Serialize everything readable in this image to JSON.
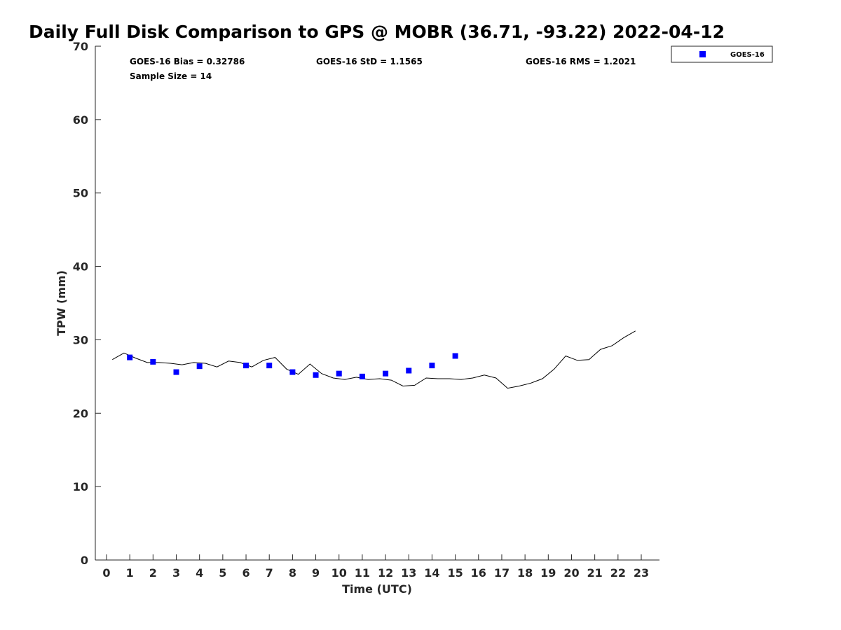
{
  "chart_data": {
    "type": "line",
    "title": "Daily Full Disk Comparison to GPS @ MOBR (36.71, -93.22) 2022-04-12",
    "xlabel": "Time (UTC)",
    "ylabel": "TPW (mm)",
    "xlim": [
      -0.5,
      23.8
    ],
    "ylim": [
      0,
      70
    ],
    "xticks": [
      0,
      1,
      2,
      3,
      4,
      5,
      6,
      7,
      8,
      9,
      10,
      11,
      12,
      13,
      14,
      15,
      16,
      17,
      18,
      19,
      20,
      21,
      22,
      23
    ],
    "yticks": [
      0,
      10,
      20,
      30,
      40,
      50,
      60,
      70
    ],
    "grid": false,
    "stats": {
      "bias": "GOES-16 Bias = 0.32786",
      "std": "GOES-16 StD = 1.1565",
      "rms": "GOES-16 RMS = 1.2021",
      "sample_size": "Sample Size = 14"
    },
    "legend": {
      "placement": "outside-top-right",
      "entries": [
        "GOES-16"
      ]
    },
    "gps_series": {
      "name": "GPS",
      "color": "#000000",
      "x": [
        0.25,
        0.75,
        1.25,
        1.75,
        2.25,
        2.75,
        3.25,
        3.75,
        4.25,
        4.75,
        5.25,
        5.75,
        6.25,
        6.75,
        7.25,
        7.75,
        8.25,
        8.75,
        9.25,
        9.75,
        10.25,
        10.75,
        11.25,
        11.75,
        12.25,
        12.75,
        13.25,
        13.75,
        14.25,
        14.75,
        15.25,
        15.75,
        16.25,
        16.75,
        17.25,
        17.75,
        18.25,
        18.75,
        19.25,
        19.75,
        20.25,
        20.75,
        21.25,
        21.75,
        22.25,
        22.75
      ],
      "y": [
        27.3,
        28.2,
        27.5,
        26.9,
        26.9,
        26.8,
        26.6,
        26.9,
        26.8,
        26.3,
        27.1,
        26.9,
        26.3,
        27.2,
        27.6,
        26.0,
        25.3,
        26.7,
        25.4,
        24.8,
        24.6,
        24.9,
        24.6,
        24.7,
        24.5,
        23.7,
        23.8,
        24.8,
        24.7,
        24.7,
        24.6,
        24.8,
        25.2,
        24.8,
        23.4,
        23.7,
        24.1,
        24.7,
        26.0,
        27.8,
        27.2,
        27.3,
        28.7,
        29.2,
        30.3,
        31.2
      ]
    },
    "series": [
      {
        "name": "GOES-16",
        "color": "#0000ff",
        "marker": "square",
        "x": [
          1,
          2,
          3,
          4,
          6,
          7,
          8,
          9,
          10,
          11,
          12,
          13,
          14,
          15
        ],
        "y": [
          27.6,
          27.0,
          25.6,
          26.4,
          26.5,
          26.5,
          25.6,
          25.2,
          25.4,
          25.0,
          25.4,
          25.8,
          26.5,
          27.8
        ]
      }
    ]
  }
}
